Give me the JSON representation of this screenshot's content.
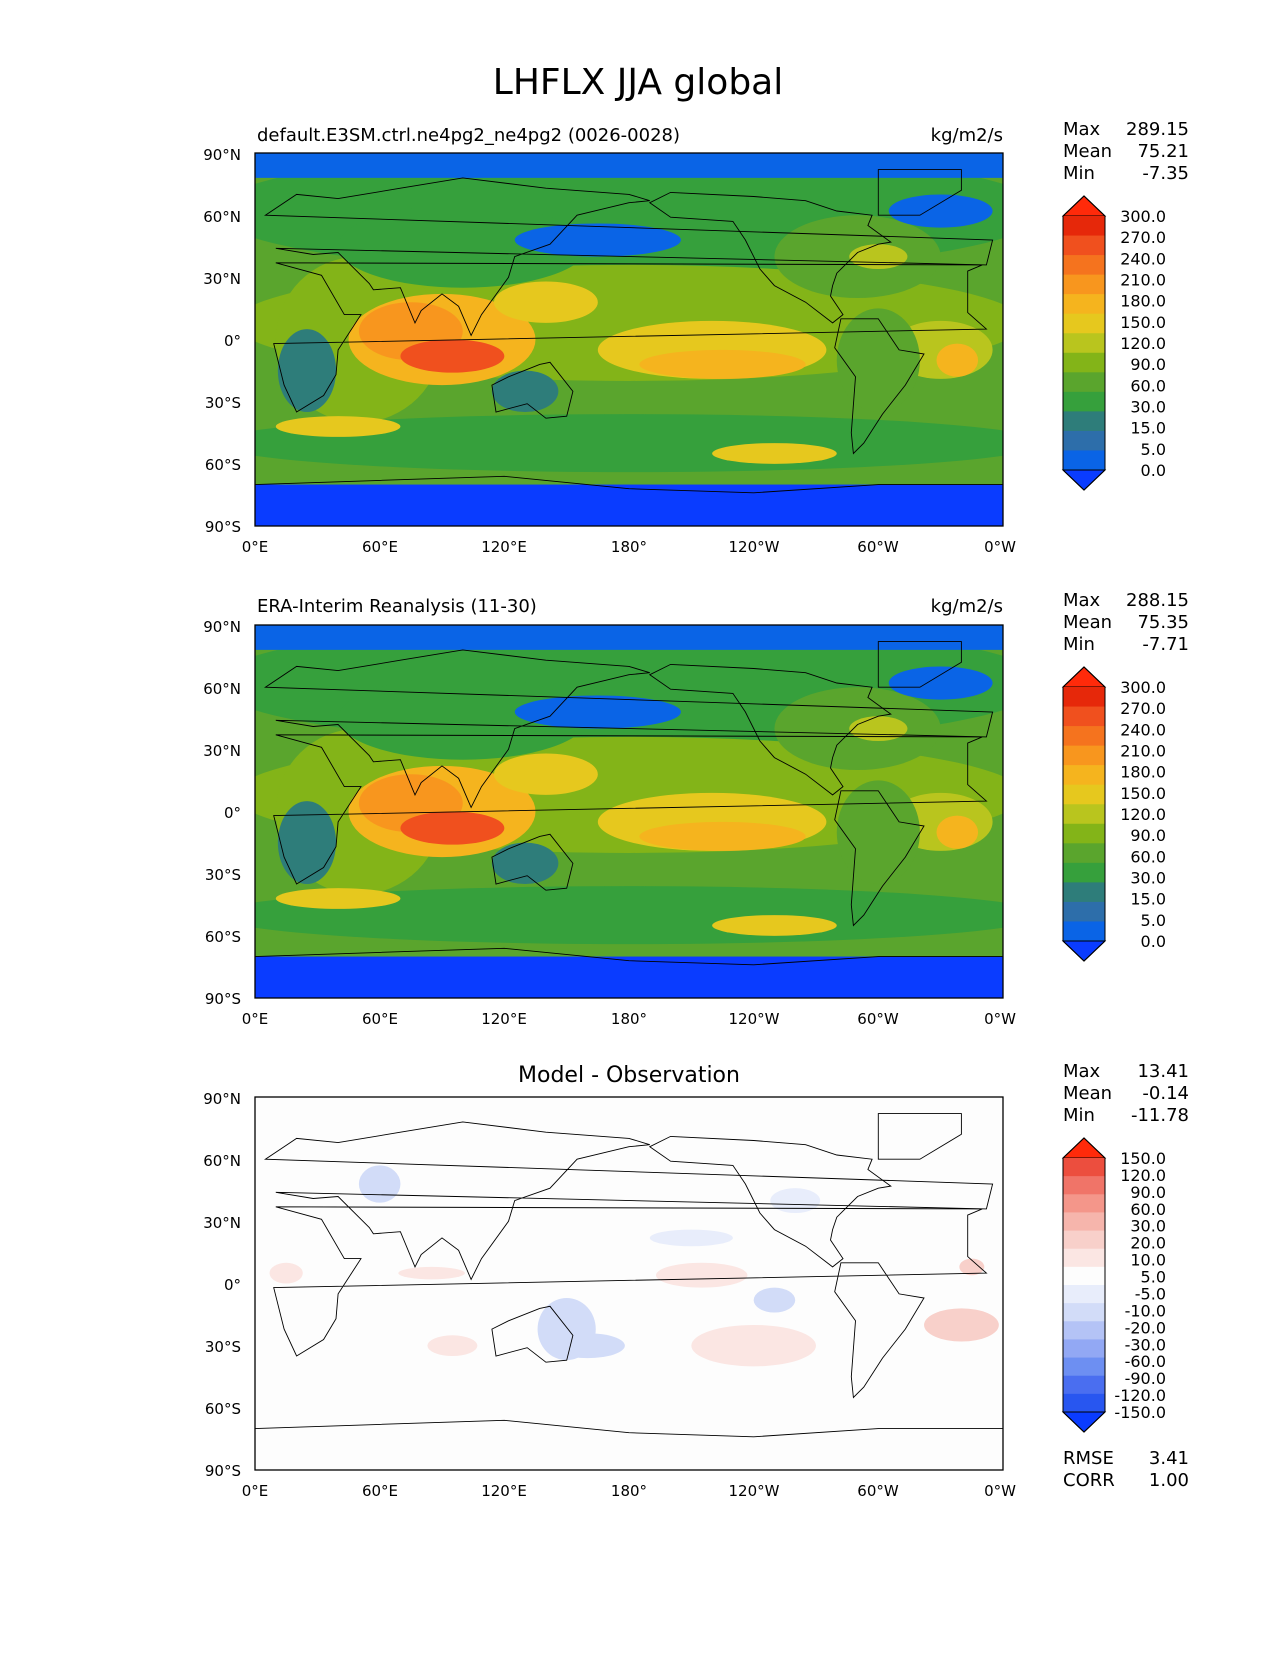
{
  "figure_title": "LHFLX JJA global",
  "colors": {
    "main_levels": [
      "#0a3cff",
      "#0a64e6",
      "#2d6eaa",
      "#2e7d7a",
      "#36a03c",
      "#5aa52d",
      "#83b418",
      "#b9c51e",
      "#e6c81e",
      "#f5b41e",
      "#f8961e",
      "#f5731e",
      "#f0501e",
      "#e6280a",
      "#ff2a0a"
    ],
    "diff_levels": [
      "#0a3cff",
      "#2856f0",
      "#4a6ef0",
      "#6d8ff2",
      "#92a8f4",
      "#b4c3f6",
      "#d2dcf8",
      "#e8edfb",
      "#fdfdfd",
      "#fbe6e3",
      "#f8d0ca",
      "#f6b5ac",
      "#f4968a",
      "#f07468",
      "#ec4e3e",
      "#ff2a0a"
    ],
    "coastline": "#000000"
  },
  "chart_data": [
    {
      "type": "heatmap",
      "title": "default.E3SM.ctrl.ne4pg2_ne4pg2 (0026-0028)",
      "units": "kg/m2/s",
      "stats": {
        "max_label": "Max",
        "max": "289.15",
        "mean_label": "Mean",
        "mean": "75.21",
        "min_label": "Min",
        "min": "-7.35"
      },
      "colorbar_levels": [
        "300.0",
        "270.0",
        "240.0",
        "210.0",
        "180.0",
        "150.0",
        "120.0",
        "90.0",
        "60.0",
        "30.0",
        "15.0",
        "5.0",
        "0.0"
      ],
      "xticks": [
        "0°E",
        "60°E",
        "120°E",
        "180°",
        "120°W",
        "60°W",
        "0°W"
      ],
      "yticks": [
        "90°N",
        "60°N",
        "30°N",
        "0°",
        "30°S",
        "60°S",
        "90°S"
      ],
      "xlim": [
        0,
        360
      ],
      "ylim": [
        -90,
        90
      ]
    },
    {
      "type": "heatmap",
      "title": "ERA-Interim Reanalysis (11-30)",
      "units": "kg/m2/s",
      "stats": {
        "max_label": "Max",
        "max": "288.15",
        "mean_label": "Mean",
        "mean": "75.35",
        "min_label": "Min",
        "min": "-7.71"
      },
      "colorbar_levels": [
        "300.0",
        "270.0",
        "240.0",
        "210.0",
        "180.0",
        "150.0",
        "120.0",
        "90.0",
        "60.0",
        "30.0",
        "15.0",
        "5.0",
        "0.0"
      ],
      "xticks": [
        "0°E",
        "60°E",
        "120°E",
        "180°",
        "120°W",
        "60°W",
        "0°W"
      ],
      "yticks": [
        "90°N",
        "60°N",
        "30°N",
        "0°",
        "30°S",
        "60°S",
        "90°S"
      ],
      "xlim": [
        0,
        360
      ],
      "ylim": [
        -90,
        90
      ]
    },
    {
      "type": "heatmap",
      "title": "Model - Observation",
      "units": "",
      "stats": {
        "max_label": "Max",
        "max": "13.41",
        "mean_label": "Mean",
        "mean": "-0.14",
        "min_label": "Min",
        "min": "-11.78"
      },
      "colorbar_levels": [
        "150.0",
        "120.0",
        "90.0",
        "60.0",
        "30.0",
        "20.0",
        "10.0",
        "5.0",
        "-5.0",
        "-10.0",
        "-20.0",
        "-30.0",
        "-60.0",
        "-90.0",
        "-120.0",
        "-150.0"
      ],
      "xticks": [
        "0°E",
        "60°E",
        "120°E",
        "180°",
        "120°W",
        "60°W",
        "0°W"
      ],
      "yticks": [
        "90°N",
        "60°N",
        "30°N",
        "0°",
        "30°S",
        "60°S",
        "90°S"
      ],
      "xlim": [
        0,
        360
      ],
      "ylim": [
        -90,
        90
      ],
      "metrics": {
        "rmse_label": "RMSE",
        "rmse": "3.41",
        "corr_label": "CORR",
        "corr": "1.00"
      }
    }
  ]
}
